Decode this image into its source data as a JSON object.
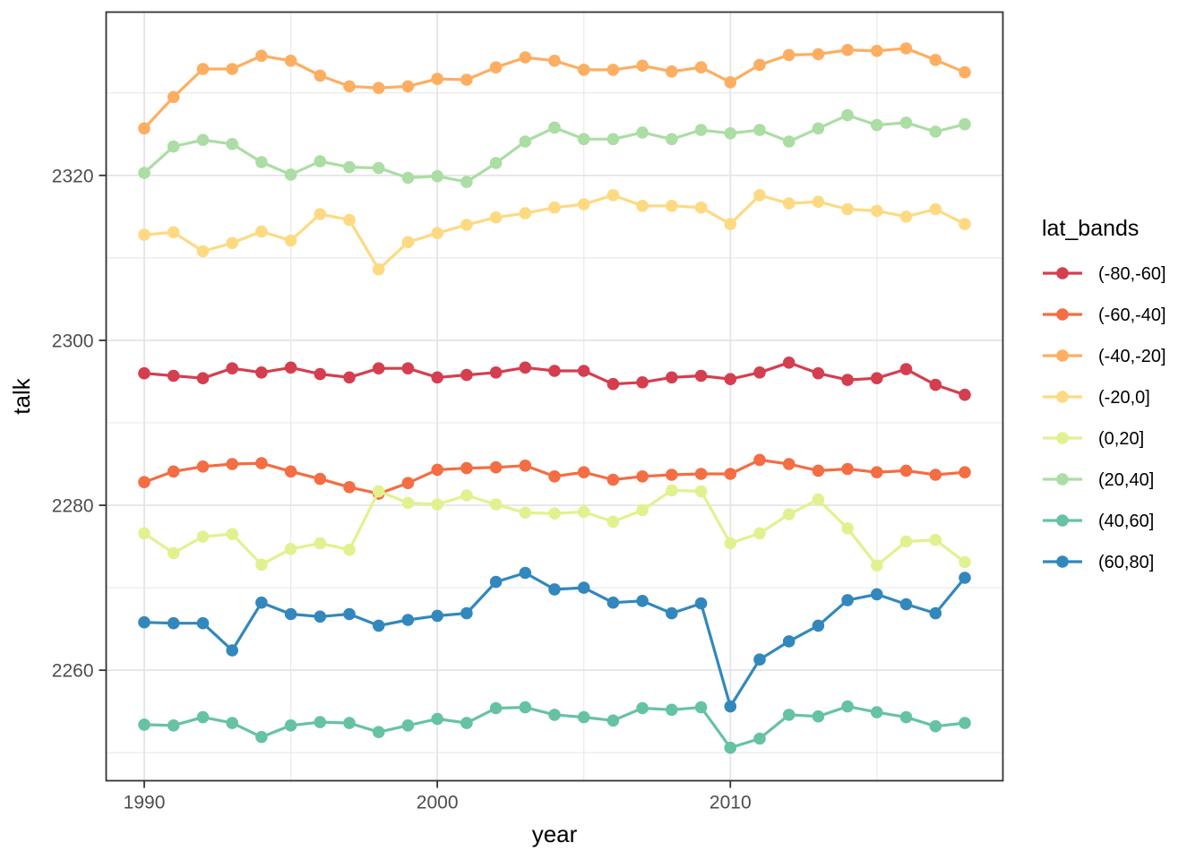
{
  "figure": {
    "x_axis_title": "year",
    "y_axis_title": "talk",
    "x_tick_labels": [
      "1990",
      "2000",
      "2010"
    ],
    "y_tick_labels": [
      "2260",
      "2280",
      "2300",
      "2320"
    ]
  },
  "legend": {
    "title": "lat_bands",
    "position": "right",
    "entries": [
      {
        "label": "(-80,-60]",
        "color": "#d53e4f"
      },
      {
        "label": "(-60,-40]",
        "color": "#f46d43"
      },
      {
        "label": "(-40,-20]",
        "color": "#fdae61"
      },
      {
        "label": "(-20,0]",
        "color": "#fdda82"
      },
      {
        "label": "(0,20]",
        "color": "#e2f18f"
      },
      {
        "label": "(20,40]",
        "color": "#abdda4"
      },
      {
        "label": "(40,60]",
        "color": "#66c2a5"
      },
      {
        "label": "(60,80]",
        "color": "#3288bd"
      }
    ]
  },
  "theme": {
    "panel_border_color": "#333333",
    "tick_color": "#333333",
    "tick_label_color": "#4d4d4d",
    "axis_title_color": "#000000",
    "grid_major_color": "#e4e4e4",
    "grid_minor_color": "#eaeaea",
    "background": "#ffffff"
  },
  "chart_data": {
    "type": "line",
    "title": "",
    "xlabel": "year",
    "ylabel": "talk",
    "grid": true,
    "legend_position": "right",
    "xlim": [
      1988.7,
      2019.3
    ],
    "ylim": [
      2246.6,
      2339.8
    ],
    "x_ticks": [
      1990,
      2000,
      2010
    ],
    "x_minor_ticks": [
      1995,
      2005,
      2015
    ],
    "y_ticks": [
      2260,
      2280,
      2300,
      2320
    ],
    "y_minor_ticks": [
      2250,
      2270,
      2290,
      2310,
      2330
    ],
    "x": [
      1990,
      1991,
      1992,
      1993,
      1994,
      1995,
      1996,
      1997,
      1998,
      1999,
      2000,
      2001,
      2002,
      2003,
      2004,
      2005,
      2006,
      2007,
      2008,
      2009,
      2010,
      2011,
      2012,
      2013,
      2014,
      2015,
      2016,
      2017,
      2018
    ],
    "series": [
      {
        "name": "(-80,-60]",
        "color": "#d53e4f",
        "values": [
          2296.0,
          2295.7,
          2295.4,
          2296.6,
          2296.1,
          2296.7,
          2295.9,
          2295.5,
          2296.6,
          2296.6,
          2295.5,
          2295.8,
          2296.1,
          2296.7,
          2296.3,
          2296.3,
          2294.7,
          2294.9,
          2295.5,
          2295.7,
          2295.3,
          2296.1,
          2297.3,
          2296.0,
          2295.2,
          2295.4,
          2296.5,
          2294.6,
          2293.4
        ]
      },
      {
        "name": "(-60,-40]",
        "color": "#f46d43",
        "values": [
          2282.8,
          2284.1,
          2284.7,
          2285.0,
          2285.1,
          2284.1,
          2283.2,
          2282.2,
          2281.4,
          2282.7,
          2284.3,
          2284.5,
          2284.6,
          2284.8,
          2283.5,
          2284.0,
          2283.1,
          2283.5,
          2283.7,
          2283.8,
          2283.8,
          2285.5,
          2285.0,
          2284.2,
          2284.4,
          2284.0,
          2284.2,
          2283.7,
          2284.0
        ]
      },
      {
        "name": "(-40,-20]",
        "color": "#fdae61",
        "values": [
          2325.7,
          2329.5,
          2332.9,
          2332.9,
          2334.5,
          2333.9,
          2332.1,
          2330.8,
          2330.6,
          2330.8,
          2331.7,
          2331.6,
          2333.1,
          2334.3,
          2333.9,
          2332.8,
          2332.8,
          2333.3,
          2332.6,
          2333.1,
          2331.3,
          2333.4,
          2334.6,
          2334.7,
          2335.2,
          2335.1,
          2335.4,
          2334.0,
          2332.5
        ]
      },
      {
        "name": "(-20,0]",
        "color": "#fdda82",
        "values": [
          2312.8,
          2313.1,
          2310.8,
          2311.8,
          2313.2,
          2312.1,
          2315.3,
          2314.6,
          2308.6,
          2311.9,
          2313.0,
          2314.0,
          2314.9,
          2315.4,
          2316.1,
          2316.5,
          2317.6,
          2316.3,
          2316.3,
          2316.1,
          2314.1,
          2317.6,
          2316.6,
          2316.8,
          2315.9,
          2315.7,
          2315.0,
          2315.9,
          2314.1
        ]
      },
      {
        "name": "(0,20]",
        "color": "#e2f18f",
        "values": [
          2276.6,
          2274.2,
          2276.2,
          2276.5,
          2272.8,
          2274.7,
          2275.4,
          2274.6,
          2281.7,
          2280.3,
          2280.1,
          2281.2,
          2280.1,
          2279.1,
          2279.0,
          2279.2,
          2278.0,
          2279.4,
          2281.8,
          2281.7,
          2275.4,
          2276.6,
          2278.9,
          2280.7,
          2277.2,
          2272.7,
          2275.6,
          2275.8,
          2273.1
        ]
      },
      {
        "name": "(20,40]",
        "color": "#abdda4",
        "values": [
          2320.3,
          2323.5,
          2324.3,
          2323.8,
          2321.6,
          2320.1,
          2321.7,
          2321.0,
          2320.9,
          2319.7,
          2319.9,
          2319.2,
          2321.5,
          2324.1,
          2325.8,
          2324.4,
          2324.4,
          2325.2,
          2324.4,
          2325.5,
          2325.1,
          2325.5,
          2324.1,
          2325.7,
          2327.3,
          2326.1,
          2326.4,
          2325.3,
          2326.2
        ]
      },
      {
        "name": "(40,60]",
        "color": "#66c2a5",
        "values": [
          2253.4,
          2253.3,
          2254.3,
          2253.6,
          2251.9,
          2253.3,
          2253.7,
          2253.6,
          2252.5,
          2253.3,
          2254.1,
          2253.6,
          2255.4,
          2255.5,
          2254.6,
          2254.3,
          2253.9,
          2255.4,
          2255.2,
          2255.5,
          2250.6,
          2251.7,
          2254.6,
          2254.4,
          2255.6,
          2254.9,
          2254.3,
          2253.2,
          2253.6
        ]
      },
      {
        "name": "(60,80]",
        "color": "#3288bd",
        "values": [
          2265.8,
          2265.7,
          2265.7,
          2262.4,
          2268.2,
          2266.8,
          2266.5,
          2266.8,
          2265.4,
          2266.1,
          2266.6,
          2266.9,
          2270.7,
          2271.8,
          2269.8,
          2270.0,
          2268.2,
          2268.4,
          2266.9,
          2268.1,
          2255.6,
          2261.3,
          2263.5,
          2265.4,
          2268.5,
          2269.2,
          2268.0,
          2266.9,
          2271.2
        ]
      }
    ]
  }
}
